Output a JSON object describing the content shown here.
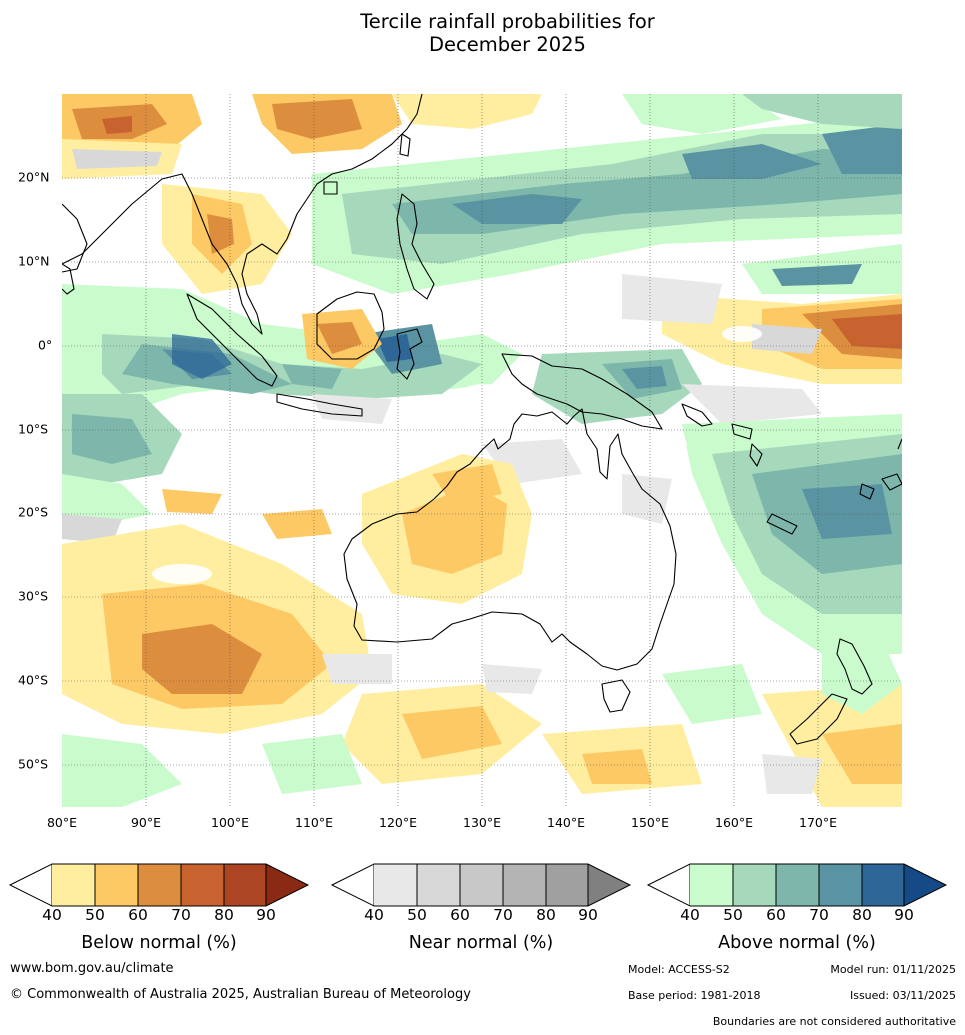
{
  "title": {
    "line1": "Tercile rainfall probabilities for",
    "line2": "December 2025"
  },
  "map": {
    "region": "Indo-Pacific / Australia",
    "lon_range": [
      80,
      180
    ],
    "lat_range": [
      -55,
      30
    ],
    "lat_labels": [
      "20°N",
      "10°N",
      "0°",
      "10°S",
      "20°S",
      "30°S",
      "40°S",
      "50°S"
    ],
    "lon_labels": [
      "80°E",
      "90°E",
      "100°E",
      "110°E",
      "120°E",
      "130°E",
      "140°E",
      "150°E",
      "160°E",
      "170°E"
    ],
    "land_outline_color": "#000000",
    "gridline_style": "dotted"
  },
  "legends": [
    {
      "label": "Below normal (%)",
      "ticks": [
        "40",
        "50",
        "60",
        "70",
        "80",
        "90"
      ],
      "colors": [
        "#ffeea0",
        "#fdc965",
        "#dc8e3e",
        "#c8622f",
        "#ac4523",
        "#8a2a14"
      ]
    },
    {
      "label": "Near normal (%)",
      "ticks": [
        "40",
        "50",
        "60",
        "70",
        "80",
        "90"
      ],
      "colors": [
        "#e8e8e8",
        "#d8d8d8",
        "#c8c8c8",
        "#b4b4b4",
        "#a0a0a0",
        "#808080"
      ]
    },
    {
      "label": "Above normal (%)",
      "ticks": [
        "40",
        "50",
        "60",
        "70",
        "80",
        "90"
      ],
      "colors": [
        "#c9fbcd",
        "#a6d9bb",
        "#7db7ab",
        "#5a93a2",
        "#2e6797",
        "#154a86"
      ]
    }
  ],
  "footer": {
    "website": "www.bom.gov.au/climate",
    "copyright": "© Commonwealth of Australia 2025, Australian Bureau of Meteorology",
    "model": "Model: ACCESS-S2",
    "model_run": "Model run: 01/11/2025",
    "base_period": "Base period: 1981-2018",
    "issued": "Issued: 03/11/2025",
    "disclaimer": "Boundaries are not considered authoritative"
  }
}
